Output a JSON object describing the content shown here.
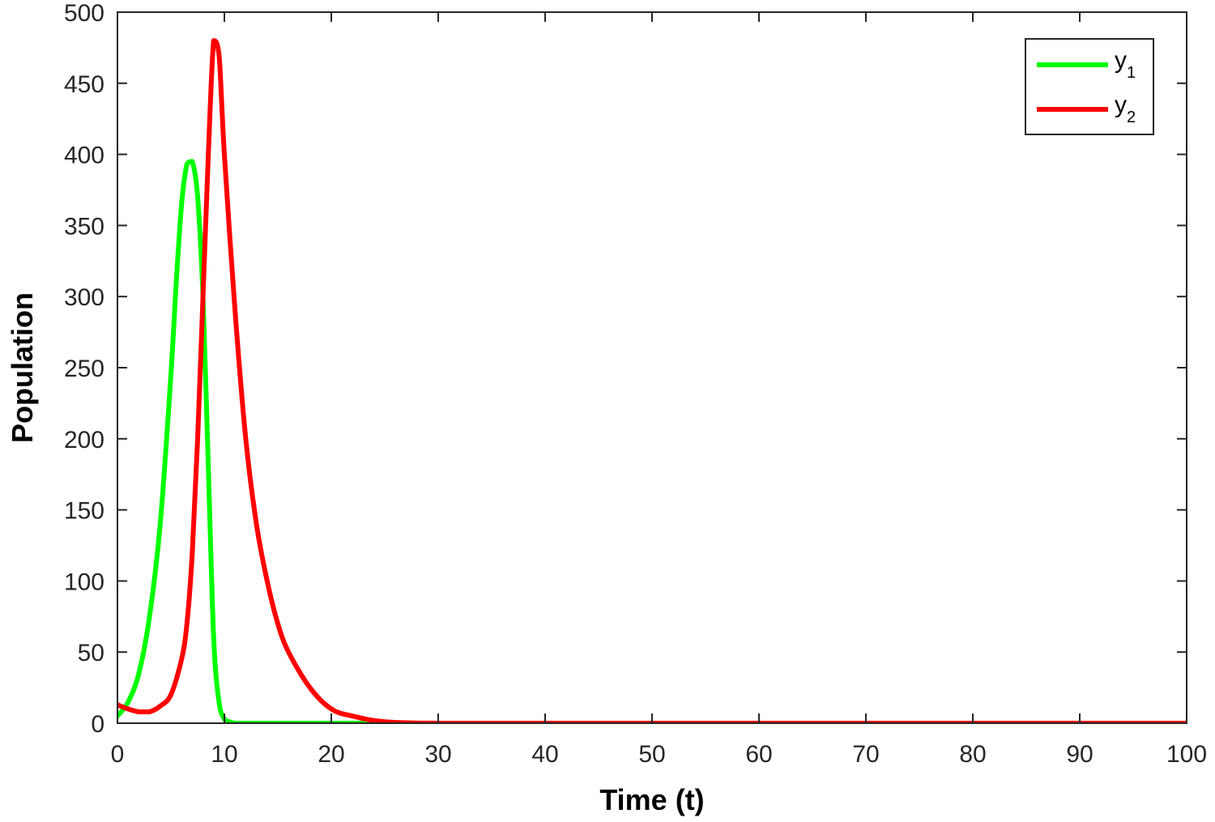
{
  "chart_data": {
    "type": "line",
    "title": "",
    "xlabel": "Time (t)",
    "ylabel": "Population",
    "xlim": [
      0,
      100
    ],
    "ylim": [
      0,
      500
    ],
    "xticks": [
      "0",
      "10",
      "20",
      "30",
      "40",
      "50",
      "60",
      "70",
      "80",
      "90",
      "100"
    ],
    "yticks": [
      "0",
      "50",
      "100",
      "150",
      "200",
      "250",
      "300",
      "350",
      "400",
      "450",
      "500"
    ],
    "grid": false,
    "legend_position": "top-right",
    "series": [
      {
        "name": "y",
        "name_subscript": "1",
        "color": "#00ff00",
        "x": [
          0,
          1,
          2,
          3,
          4,
          5,
          5.5,
          6,
          6.5,
          7,
          7.5,
          8,
          8.5,
          9,
          9.5,
          10,
          10.5,
          11,
          12,
          15,
          20,
          30,
          40,
          50,
          60,
          70,
          80,
          90,
          100
        ],
        "y": [
          5,
          15,
          35,
          75,
          140,
          245,
          310,
          365,
          393,
          395,
          370,
          300,
          180,
          60,
          15,
          3,
          1,
          0,
          0,
          0,
          0,
          0,
          0,
          0,
          0,
          0,
          0,
          0,
          0
        ]
      },
      {
        "name": "y",
        "name_subscript": "2",
        "color": "#ff0000",
        "x": [
          0,
          1,
          2,
          3,
          4,
          5,
          6,
          6.5,
          7,
          7.5,
          8,
          8.5,
          9,
          9.5,
          10,
          11,
          12,
          13,
          14,
          15,
          16,
          18,
          20,
          22,
          25,
          30,
          40,
          50,
          60,
          70,
          80,
          90,
          100
        ],
        "y": [
          13,
          10,
          8,
          8,
          12,
          20,
          45,
          70,
          120,
          200,
          300,
          400,
          480,
          470,
          400,
          290,
          200,
          140,
          100,
          70,
          50,
          25,
          10,
          5,
          1,
          0,
          0,
          0,
          0,
          0,
          0,
          0,
          0
        ]
      }
    ]
  }
}
